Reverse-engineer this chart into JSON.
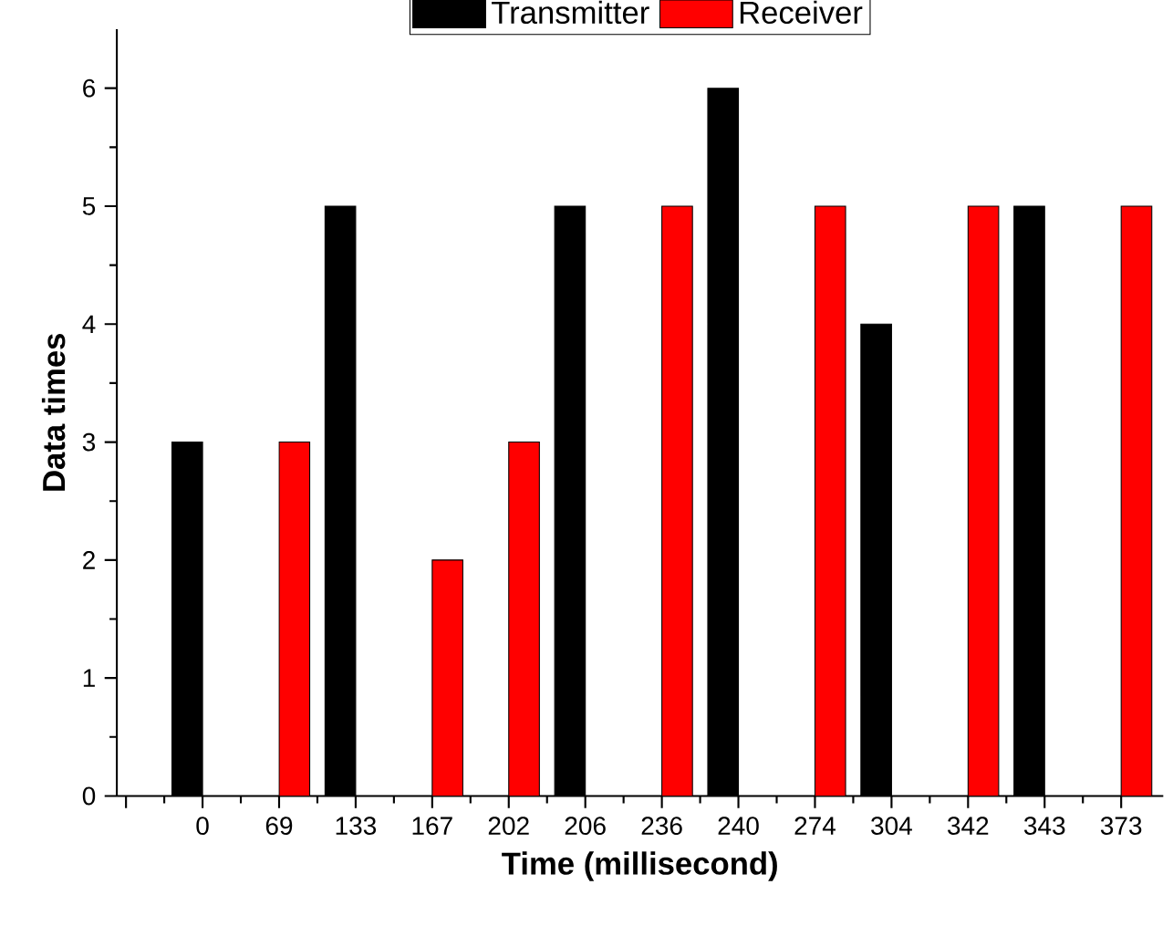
{
  "chart_data": {
    "type": "bar",
    "xlabel": "Time (millisecond)",
    "ylabel": "Data times",
    "categories": [
      "0",
      "69",
      "133",
      "167",
      "202",
      "206",
      "236",
      "240",
      "274",
      "304",
      "342",
      "343",
      "373"
    ],
    "series": [
      {
        "name": "Transmitter",
        "color": "#000000",
        "values": [
          3,
          null,
          5,
          null,
          null,
          5,
          null,
          6,
          null,
          4,
          null,
          5,
          null
        ]
      },
      {
        "name": "Receiver",
        "color": "#ff0000",
        "values": [
          null,
          3,
          null,
          2,
          3,
          null,
          5,
          null,
          5,
          null,
          5,
          null,
          5
        ]
      }
    ],
    "ylim": [
      0,
      6.5
    ],
    "yticks": [
      0,
      1,
      2,
      3,
      4,
      5,
      6
    ],
    "grid": false,
    "legend": "top"
  }
}
